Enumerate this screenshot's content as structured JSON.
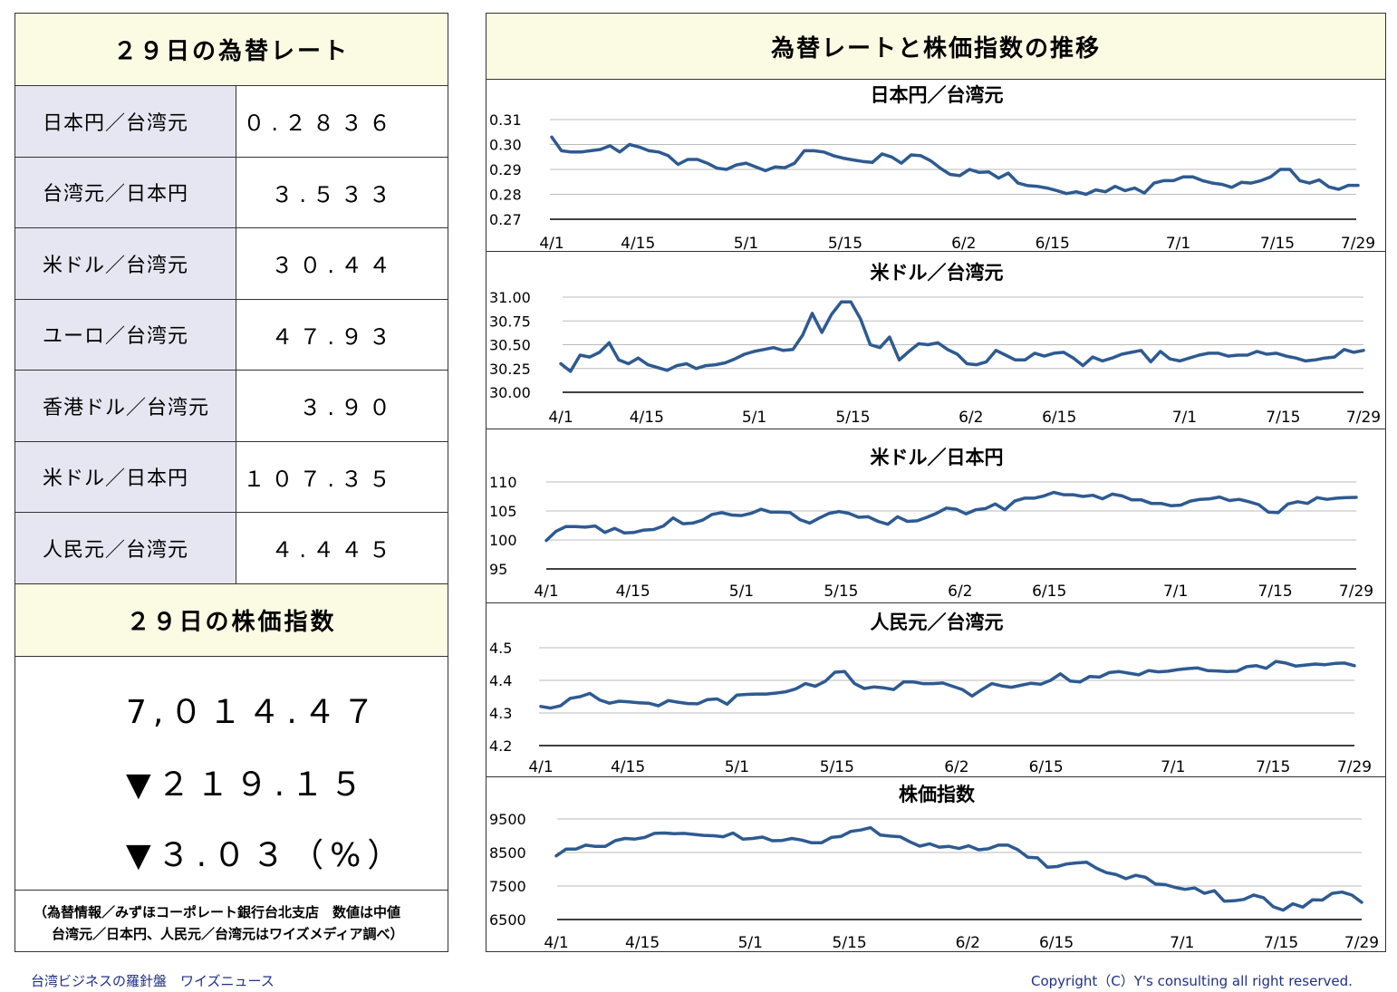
{
  "left": {
    "rates_title": "２９日の為替レート",
    "rates": [
      {
        "name": "日本円／台湾元",
        "value": "０.２８３６"
      },
      {
        "name": "台湾元／日本円",
        "value": "３.５３３"
      },
      {
        "name": "米ドル／台湾元",
        "value": "３０.４４"
      },
      {
        "name": "ユーロ／台湾元",
        "value": "４７.９３"
      },
      {
        "name": "香港ドル／台湾元",
        "value": "３.９０"
      },
      {
        "name": "米ドル／日本円",
        "value": "１０７.３５"
      },
      {
        "name": "人民元／台湾元",
        "value": "４.４４５"
      }
    ],
    "stock_title": "２９日の株価指数",
    "stock_value": "7,０１４.４７",
    "stock_change": "▼２１９.１５",
    "stock_change_pct": "▼３.０３（%）",
    "note_line1": "（為替情報／みずほコーポレート銀行台北支店　数値は中値",
    "note_line2": "台湾元／日本円、人民元／台湾元はワイズメディア調べ）"
  },
  "right_title": "為替レートと株価指数の推移",
  "footer_left": "台湾ビジネスの羅針盤　ワイズニュース",
  "footer_right": "Copyright（C）Y's consulting all right reserved.",
  "chart_data": [
    {
      "type": "line",
      "title": "日本円／台湾元",
      "ylim": [
        0.27,
        0.31
      ],
      "yticks": [
        "0.31",
        "0.30",
        "0.29",
        "0.28",
        "0.27"
      ],
      "ytick_values": [
        0.31,
        0.3,
        0.29,
        0.28,
        0.27
      ],
      "xtick_labels": [
        "4/1",
        "4/15",
        "5/1",
        "5/15",
        "6/2",
        "6/15",
        "7/1",
        "7/15",
        "7/29"
      ],
      "color": "#2e5a91",
      "values": [
        0.303,
        0.2975,
        0.297,
        0.297,
        0.2975,
        0.298,
        0.2995,
        0.297,
        0.3,
        0.299,
        0.2975,
        0.297,
        0.2955,
        0.292,
        0.294,
        0.294,
        0.2925,
        0.2905,
        0.29,
        0.2918,
        0.2925,
        0.291,
        0.2895,
        0.291,
        0.2907,
        0.2925,
        0.2975,
        0.2975,
        0.297,
        0.2955,
        0.2945,
        0.2938,
        0.2932,
        0.2928,
        0.2962,
        0.295,
        0.2925,
        0.2958,
        0.2955,
        0.2935,
        0.2905,
        0.288,
        0.2875,
        0.29,
        0.2888,
        0.289,
        0.2865,
        0.2885,
        0.2845,
        0.2835,
        0.2832,
        0.2825,
        0.2815,
        0.2803,
        0.281,
        0.28,
        0.2818,
        0.281,
        0.2832,
        0.2815,
        0.2825,
        0.2805,
        0.2845,
        0.2855,
        0.2855,
        0.287,
        0.287,
        0.2855,
        0.2845,
        0.284,
        0.2828,
        0.2848,
        0.2845,
        0.2855,
        0.287,
        0.29,
        0.29,
        0.2855,
        0.2845,
        0.2858,
        0.283,
        0.282,
        0.2836,
        0.2836
      ]
    },
    {
      "type": "line",
      "title": "米ドル／台湾元",
      "ylim": [
        30.0,
        31.0
      ],
      "yticks": [
        "31.00",
        "30.75",
        "30.50",
        "30.25",
        "30.00"
      ],
      "ytick_values": [
        31.0,
        30.75,
        30.5,
        30.25,
        30.0
      ],
      "xtick_labels": [
        "4/1",
        "4/15",
        "5/1",
        "5/15",
        "6/2",
        "6/15",
        "7/1",
        "7/15",
        "7/29"
      ],
      "color": "#2e5a91",
      "values": [
        30.3,
        30.22,
        30.39,
        30.37,
        30.42,
        30.52,
        30.34,
        30.3,
        30.36,
        30.29,
        30.26,
        30.23,
        30.28,
        30.3,
        30.25,
        30.28,
        30.29,
        30.31,
        30.35,
        30.4,
        30.43,
        30.45,
        30.47,
        30.44,
        30.45,
        30.6,
        30.83,
        30.63,
        30.82,
        30.95,
        30.95,
        30.77,
        30.5,
        30.47,
        30.58,
        30.34,
        30.43,
        30.51,
        30.5,
        30.52,
        30.45,
        30.4,
        30.3,
        30.29,
        30.32,
        30.44,
        30.39,
        30.34,
        30.34,
        30.41,
        30.38,
        30.41,
        30.42,
        30.36,
        30.28,
        30.37,
        30.33,
        30.36,
        30.4,
        30.42,
        30.44,
        30.32,
        30.43,
        30.35,
        30.33,
        30.36,
        30.39,
        30.41,
        30.41,
        30.38,
        30.39,
        30.39,
        30.43,
        30.4,
        30.41,
        30.38,
        30.36,
        30.33,
        30.34,
        30.36,
        30.37,
        30.45,
        30.42,
        30.44
      ]
    },
    {
      "type": "line",
      "title": "米ドル／日本円",
      "ylim": [
        95,
        110
      ],
      "yticks": [
        "110",
        "105",
        "100",
        "95"
      ],
      "ytick_values": [
        110,
        105,
        100,
        95
      ],
      "xtick_labels": [
        "4/1",
        "4/15",
        "5/1",
        "5/15",
        "6/2",
        "6/15",
        "7/1",
        "7/15",
        "7/29"
      ],
      "color": "#2e5a91",
      "values": [
        99.9,
        101.5,
        102.3,
        102.3,
        102.2,
        102.4,
        101.3,
        102.0,
        101.2,
        101.3,
        101.7,
        101.8,
        102.4,
        103.8,
        102.8,
        102.9,
        103.4,
        104.4,
        104.7,
        104.3,
        104.2,
        104.6,
        105.3,
        104.8,
        104.8,
        104.7,
        103.5,
        102.9,
        103.8,
        104.6,
        104.9,
        104.6,
        103.9,
        104.0,
        103.2,
        102.7,
        104.0,
        103.2,
        103.3,
        103.9,
        104.6,
        105.5,
        105.3,
        104.5,
        105.2,
        105.4,
        106.2,
        105.2,
        106.7,
        107.2,
        107.2,
        107.6,
        108.2,
        107.8,
        107.8,
        107.5,
        107.7,
        107.1,
        107.9,
        107.6,
        106.9,
        106.9,
        106.3,
        106.3,
        105.9,
        106.0,
        106.7,
        107.0,
        107.1,
        107.4,
        106.8,
        107.0,
        106.6,
        106.1,
        104.8,
        104.7,
        106.2,
        106.6,
        106.3,
        107.3,
        107.0,
        107.2,
        107.3,
        107.35
      ]
    },
    {
      "type": "line",
      "title": "人民元／台湾元",
      "ylim": [
        4.2,
        4.5
      ],
      "yticks": [
        "4.5",
        "4.4",
        "4.3",
        "4.2"
      ],
      "ytick_values": [
        4.5,
        4.4,
        4.3,
        4.2
      ],
      "xtick_labels": [
        "4/1",
        "4/15",
        "5/1",
        "5/15",
        "6/2",
        "6/15",
        "7/1",
        "7/15",
        "7/29"
      ],
      "color": "#2e5a91",
      "values": [
        4.32,
        4.315,
        4.322,
        4.345,
        4.35,
        4.36,
        4.34,
        4.33,
        4.336,
        4.334,
        4.331,
        4.33,
        4.322,
        4.338,
        4.333,
        4.329,
        4.328,
        4.341,
        4.343,
        4.327,
        4.355,
        4.357,
        4.358,
        4.358,
        4.361,
        4.365,
        4.374,
        4.39,
        4.382,
        4.397,
        4.425,
        4.427,
        4.39,
        4.375,
        4.38,
        4.377,
        4.372,
        4.395,
        4.395,
        4.39,
        4.39,
        4.392,
        4.382,
        4.372,
        4.352,
        4.372,
        4.39,
        4.383,
        4.379,
        4.385,
        4.391,
        4.388,
        4.4,
        4.42,
        4.398,
        4.395,
        4.412,
        4.41,
        4.424,
        4.427,
        4.422,
        4.417,
        4.43,
        4.426,
        4.428,
        4.433,
        4.436,
        4.438,
        4.43,
        4.429,
        4.427,
        4.428,
        4.442,
        4.445,
        4.437,
        4.458,
        4.453,
        4.444,
        4.447,
        4.45,
        4.448,
        4.452,
        4.453,
        4.445
      ]
    },
    {
      "type": "line",
      "title": "株価指数",
      "ylim": [
        6500,
        9500
      ],
      "yticks": [
        "9500",
        "8500",
        "7500",
        "6500"
      ],
      "ytick_values": [
        9500,
        8500,
        7500,
        6500
      ],
      "xtick_labels": [
        "4/1",
        "4/15",
        "5/1",
        "5/15",
        "6/2",
        "6/15",
        "7/1",
        "7/15",
        "7/29"
      ],
      "color": "#2e5a91",
      "values": [
        8400,
        8600,
        8600,
        8720,
        8680,
        8680,
        8850,
        8920,
        8900,
        8950,
        9070,
        9080,
        9060,
        9070,
        9040,
        9010,
        9000,
        8970,
        9080,
        8900,
        8920,
        8960,
        8850,
        8860,
        8920,
        8870,
        8790,
        8790,
        8950,
        8980,
        9130,
        9170,
        9240,
        9020,
        8990,
        8970,
        8820,
        8690,
        8760,
        8660,
        8680,
        8620,
        8700,
        8580,
        8610,
        8720,
        8720,
        8580,
        8360,
        8340,
        8060,
        8080,
        8160,
        8190,
        8210,
        8030,
        7900,
        7840,
        7720,
        7820,
        7760,
        7560,
        7540,
        7460,
        7400,
        7440,
        7280,
        7360,
        7050,
        7060,
        7100,
        7230,
        7150,
        6880,
        6780,
        6970,
        6870,
        7090,
        7080,
        7280,
        7320,
        7230,
        7014
      ]
    }
  ]
}
